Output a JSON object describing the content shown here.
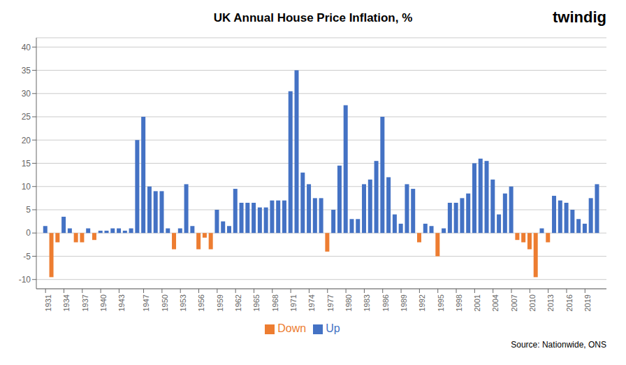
{
  "chart_data": {
    "type": "bar",
    "title": "UK Annual House Price Inflation, %",
    "x": [
      1931,
      1932,
      1933,
      1934,
      1935,
      1936,
      1937,
      1938,
      1939,
      1940,
      1941,
      1942,
      1943,
      1944,
      1945,
      1946,
      1947,
      1948,
      1949,
      1950,
      1951,
      1952,
      1953,
      1954,
      1955,
      1956,
      1957,
      1958,
      1959,
      1960,
      1961,
      1962,
      1963,
      1964,
      1965,
      1966,
      1967,
      1968,
      1969,
      1970,
      1971,
      1972,
      1973,
      1974,
      1975,
      1976,
      1977,
      1978,
      1979,
      1980,
      1981,
      1982,
      1983,
      1984,
      1985,
      1986,
      1987,
      1988,
      1989,
      1990,
      1991,
      1992,
      1993,
      1994,
      1995,
      1996,
      1997,
      1998,
      1999,
      2000,
      2001,
      2002,
      2003,
      2004,
      2005,
      2006,
      2007,
      2008,
      2009,
      2010,
      2011,
      2012,
      2013,
      2014,
      2015,
      2016,
      2017,
      2018,
      2019,
      2020,
      2021
    ],
    "series": [
      {
        "name": "Up",
        "color": "#4472C4",
        "values": [
          1.5,
          null,
          null,
          3.5,
          1.0,
          null,
          null,
          1.0,
          null,
          0.5,
          0.5,
          1.0,
          1.0,
          0.5,
          1.0,
          20.0,
          25.0,
          10.0,
          9.0,
          9.0,
          1.0,
          null,
          1.0,
          10.5,
          1.5,
          null,
          null,
          null,
          5.0,
          2.5,
          1.5,
          9.5,
          6.5,
          6.5,
          6.5,
          5.5,
          5.5,
          7.0,
          7.0,
          7.0,
          30.5,
          35.0,
          13.0,
          10.5,
          7.5,
          7.5,
          null,
          5.0,
          14.5,
          27.5,
          3.0,
          3.0,
          10.5,
          11.5,
          15.5,
          25.0,
          12.0,
          4.0,
          2.0,
          10.5,
          9.5,
          null,
          2.0,
          1.5,
          null,
          1.0,
          6.5,
          6.5,
          7.5,
          8.5,
          15.0,
          16.0,
          15.5,
          11.5,
          4.0,
          8.5,
          10.0,
          null,
          null,
          null,
          null,
          1.0,
          null,
          8.0,
          7.0,
          6.5,
          5.0,
          3.0,
          2.0,
          7.5,
          10.5
        ]
      },
      {
        "name": "Down",
        "color": "#ED7D31",
        "values": [
          null,
          -9.5,
          -2.0,
          null,
          null,
          -2.0,
          -2.0,
          null,
          -1.5,
          null,
          null,
          null,
          null,
          null,
          null,
          null,
          null,
          null,
          null,
          null,
          null,
          -3.5,
          null,
          null,
          null,
          -3.5,
          -1.0,
          -3.5,
          null,
          null,
          null,
          null,
          null,
          null,
          null,
          null,
          null,
          null,
          null,
          null,
          null,
          null,
          null,
          null,
          null,
          null,
          -4.0,
          null,
          null,
          null,
          null,
          null,
          null,
          null,
          null,
          null,
          null,
          null,
          null,
          null,
          null,
          -2.0,
          null,
          null,
          -5.0,
          null,
          null,
          null,
          null,
          null,
          null,
          null,
          null,
          null,
          null,
          null,
          null,
          -1.5,
          -2.0,
          -3.5,
          -9.5,
          null,
          -2.0,
          null,
          null,
          null,
          null,
          null,
          null,
          null,
          null
        ]
      }
    ],
    "stacked": true,
    "xlim": [
      1929.5,
      2022.5
    ],
    "xticks": [
      1931,
      1934,
      1937,
      1940,
      1943,
      1947,
      1950,
      1953,
      1956,
      1959,
      1962,
      1965,
      1968,
      1971,
      1974,
      1977,
      1980,
      1983,
      1986,
      1989,
      1992,
      1995,
      1998,
      2001,
      2004,
      2007,
      2010,
      2013,
      2016,
      2019
    ],
    "ylim": [
      -12,
      42
    ],
    "yticks": [
      -10,
      -5,
      0,
      5,
      10,
      15,
      20,
      25,
      30,
      35,
      40
    ],
    "grid": true,
    "legend": "bottom",
    "annotations": [
      "Source: Nationwide, ONS",
      "twindig"
    ]
  }
}
